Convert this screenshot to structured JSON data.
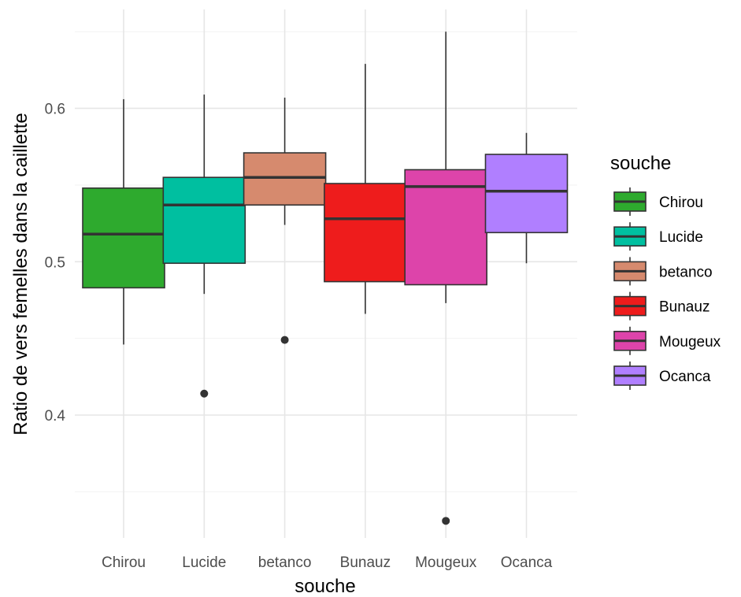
{
  "chart_data": {
    "type": "boxplot",
    "xlabel": "souche",
    "ylabel": "Ratio de vers femelles dans la caillette",
    "ylim": [
      0.325,
      0.66
    ],
    "y_ticks": [
      0.4,
      0.5,
      0.6
    ],
    "y_tick_labels": [
      "0.4",
      "0.5",
      "0.6"
    ],
    "y_minor_ticks": [
      0.35,
      0.45,
      0.55,
      0.65
    ],
    "grid": true,
    "legend": {
      "title": "souche",
      "position": "right"
    },
    "categories": [
      "Chirou",
      "Lucide",
      "betanco",
      "Bunauz",
      "Mougeux",
      "Ocanca"
    ],
    "boxes": [
      {
        "name": "Chirou",
        "color": "#2EAA2E",
        "min": 0.446,
        "q1": 0.483,
        "median": 0.518,
        "q3": 0.548,
        "max": 0.606,
        "outliers": []
      },
      {
        "name": "Lucide",
        "color": "#00BFA0",
        "min": 0.479,
        "q1": 0.499,
        "median": 0.537,
        "q3": 0.555,
        "max": 0.609,
        "outliers": [
          0.414
        ]
      },
      {
        "name": "betanco",
        "color": "#D68A6E",
        "min": 0.524,
        "q1": 0.537,
        "median": 0.555,
        "q3": 0.571,
        "max": 0.607,
        "outliers": [
          0.449
        ]
      },
      {
        "name": "Bunauz",
        "color": "#EE1C1C",
        "min": 0.466,
        "q1": 0.487,
        "median": 0.528,
        "q3": 0.551,
        "max": 0.629,
        "outliers": []
      },
      {
        "name": "Mougeux",
        "color": "#DD44AA",
        "min": 0.473,
        "q1": 0.485,
        "median": 0.549,
        "q3": 0.56,
        "max": 0.65,
        "outliers": [
          0.331
        ]
      },
      {
        "name": "Ocanca",
        "color": "#B07FFF",
        "min": 0.499,
        "q1": 0.519,
        "median": 0.546,
        "q3": 0.57,
        "max": 0.584,
        "outliers": []
      }
    ]
  }
}
